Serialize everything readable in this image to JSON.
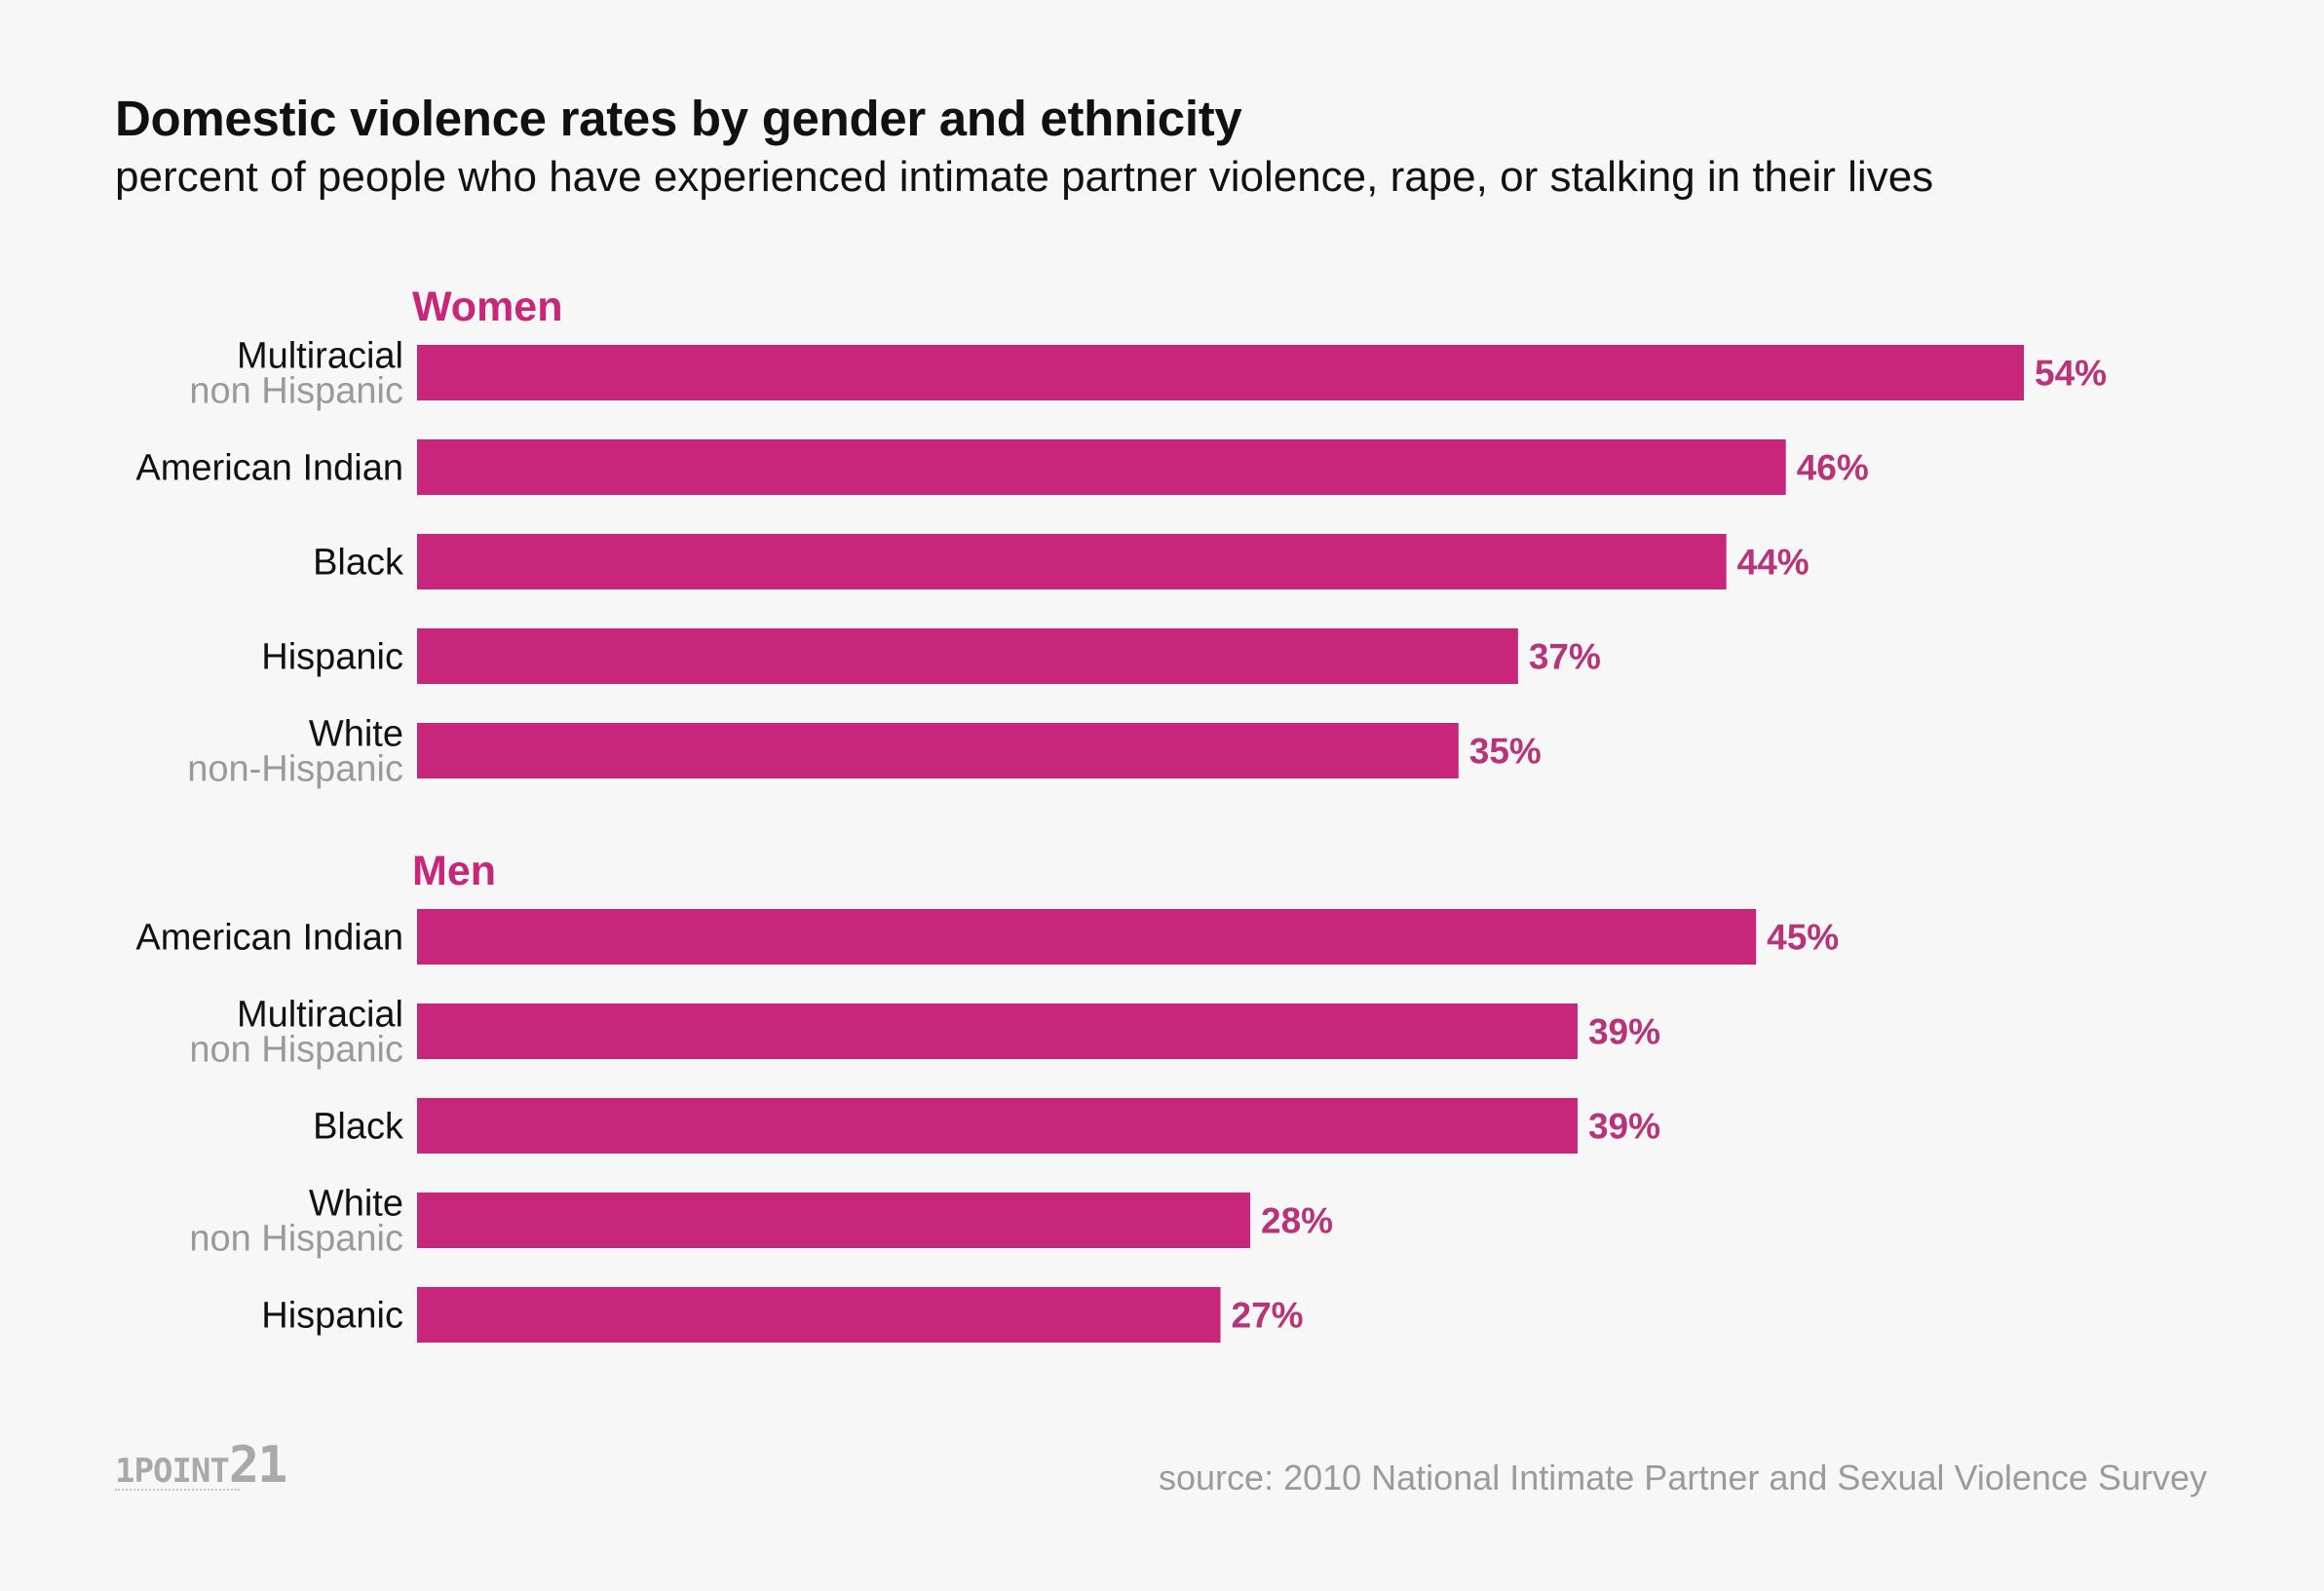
{
  "chart_data": {
    "type": "bar",
    "orientation": "horizontal",
    "title": "Domestic violence rates by gender and ethnicity",
    "subtitle": "percent of people who have experienced intimate partner violence, rape, or stalking in their lives",
    "value_suffix": "%",
    "xlim": [
      0,
      54
    ],
    "groups": [
      {
        "name": "Women",
        "bars": [
          {
            "label": "Multiracial",
            "sublabel": "non Hispanic",
            "value": 54,
            "data_label": "54%"
          },
          {
            "label": "American Indian",
            "sublabel": null,
            "value": 46,
            "data_label": "46%"
          },
          {
            "label": "Black",
            "sublabel": null,
            "value": 44,
            "data_label": "44%"
          },
          {
            "label": "Hispanic",
            "sublabel": null,
            "value": 37,
            "data_label": "37%"
          },
          {
            "label": "White",
            "sublabel": "non-Hispanic",
            "value": 35,
            "data_label": "35%"
          }
        ]
      },
      {
        "name": "Men",
        "bars": [
          {
            "label": "American Indian",
            "sublabel": null,
            "value": 45,
            "data_label": "45%"
          },
          {
            "label": "Multiracial",
            "sublabel": "non Hispanic",
            "value": 39,
            "data_label": "39%"
          },
          {
            "label": "Black",
            "sublabel": null,
            "value": 39,
            "data_label": "39%"
          },
          {
            "label": "White",
            "sublabel": "non Hispanic",
            "value": 28,
            "data_label": "28%"
          },
          {
            "label": "Hispanic",
            "sublabel": null,
            "value": 27,
            "data_label": "27%"
          }
        ]
      }
    ],
    "colors": {
      "bar": "#c8267a",
      "group_label": "#c8267a",
      "value_label": "#b8337a",
      "category_label": "#111111",
      "sublabel": "#9a9a9a"
    }
  },
  "footer": {
    "logo_part1": "1POINT",
    "logo_part2": "21",
    "source": "source: 2010 National Intimate Partner and Sexual Violence Survey"
  }
}
